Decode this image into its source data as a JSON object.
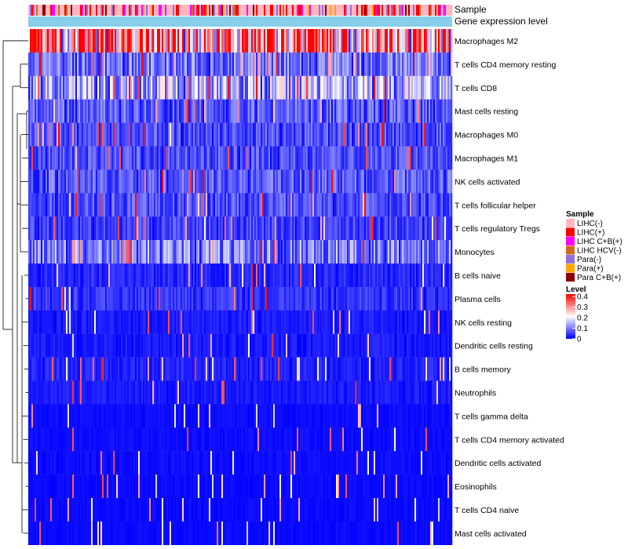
{
  "chart_data": {
    "type": "heatmap",
    "annotation_rows": [
      "Sample",
      "Gene expression level"
    ],
    "rows": [
      "Macrophages M2",
      "T cells CD4 memory resting",
      "T cells CD8",
      "Mast cells resting",
      "Macrophages M0",
      "Macrophages M1",
      "NK cells activated",
      "T cells follicular helper",
      "T cells regulatory  Tregs",
      "Monocytes",
      "B cells naive",
      "Plasma cells",
      "NK cells resting",
      "Dendritic cells resting",
      "B cells memory",
      "Neutrophils",
      "T cells gamma delta",
      "T cells CD4 memory activated",
      "Dendritic cells activated",
      "Eosinophils",
      "T cells CD4 naive",
      "Mast cells activated"
    ],
    "row_mean_levels": [
      0.3,
      0.09,
      0.14,
      0.07,
      0.06,
      0.06,
      0.07,
      0.06,
      0.05,
      0.1,
      0.03,
      0.04,
      0.02,
      0.02,
      0.025,
      0.02,
      0.01,
      0.01,
      0.01,
      0.008,
      0.008,
      0.008
    ],
    "sample_legend": {
      "title": "Sample",
      "items": [
        {
          "label": "LIHC(-)",
          "color": "#ffb6c1"
        },
        {
          "label": "LIHC(+)",
          "color": "#ff0000"
        },
        {
          "label": "LIHC C+B(+)",
          "color": "#ff00ff"
        },
        {
          "label": "LIHC HCV(-)",
          "color": "#d2691e"
        },
        {
          "label": "Para(-)",
          "color": "#9370db"
        },
        {
          "label": "Para(+)",
          "color": "#ffa500"
        },
        {
          "label": "Para C+B(+)",
          "color": "#8b0000"
        }
      ]
    },
    "level_legend": {
      "title": "Level",
      "ticks": [
        "0.4",
        "0.3",
        "0.2",
        "0.1",
        "0"
      ],
      "range": [
        0,
        0.4
      ],
      "colors": [
        "#0000ff",
        "#ffffff",
        "#ff0000"
      ]
    },
    "gene_expression_color": "#87ceeb"
  }
}
